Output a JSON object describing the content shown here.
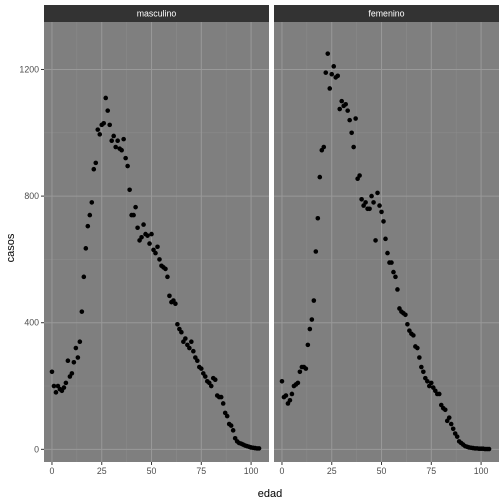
{
  "chart_data": {
    "type": "scatter",
    "xlabel": "edad",
    "ylabel": "casos",
    "xlim": [
      -4,
      109
    ],
    "ylim": [
      -40,
      1350
    ],
    "x_ticks": [
      0,
      25,
      50,
      75,
      100
    ],
    "y_ticks": [
      0,
      400,
      800,
      1200
    ],
    "grid": true,
    "facets": [
      {
        "label": "masculino",
        "x": [
          0,
          1,
          2,
          3,
          4,
          5,
          6,
          7,
          8,
          9,
          10,
          11,
          12,
          13,
          14,
          15,
          16,
          17,
          18,
          19,
          20,
          21,
          22,
          23,
          24,
          25,
          26,
          27,
          28,
          29,
          30,
          31,
          32,
          33,
          34,
          35,
          36,
          37,
          38,
          39,
          40,
          41,
          42,
          43,
          44,
          45,
          46,
          47,
          48,
          49,
          50,
          51,
          52,
          53,
          54,
          55,
          56,
          57,
          58,
          59,
          60,
          61,
          62,
          63,
          64,
          65,
          66,
          67,
          68,
          69,
          70,
          71,
          72,
          73,
          74,
          75,
          76,
          77,
          78,
          79,
          80,
          81,
          82,
          83,
          84,
          85,
          86,
          87,
          88,
          89,
          90,
          91,
          92,
          93,
          94,
          95,
          96,
          97,
          98,
          99,
          100,
          101,
          102,
          103,
          104
        ],
        "y": [
          245,
          200,
          180,
          200,
          190,
          185,
          195,
          210,
          280,
          230,
          240,
          275,
          320,
          290,
          340,
          435,
          545,
          635,
          705,
          740,
          780,
          885,
          905,
          1010,
          995,
          1025,
          1030,
          1110,
          1070,
          1025,
          975,
          990,
          955,
          975,
          950,
          945,
          980,
          920,
          895,
          820,
          740,
          740,
          765,
          700,
          660,
          670,
          710,
          680,
          675,
          650,
          680,
          630,
          620,
          640,
          600,
          580,
          575,
          570,
          545,
          485,
          465,
          470,
          460,
          395,
          380,
          370,
          340,
          350,
          330,
          320,
          340,
          310,
          290,
          280,
          260,
          255,
          240,
          230,
          215,
          210,
          200,
          225,
          220,
          170,
          165,
          165,
          145,
          115,
          105,
          80,
          75,
          60,
          35,
          25,
          20,
          18,
          15,
          12,
          10,
          8,
          6,
          5,
          4,
          3,
          3
        ]
      },
      {
        "label": "femenino",
        "x": [
          0,
          1,
          2,
          3,
          4,
          5,
          6,
          7,
          8,
          9,
          10,
          11,
          12,
          13,
          14,
          15,
          16,
          17,
          18,
          19,
          20,
          21,
          22,
          23,
          24,
          25,
          26,
          27,
          28,
          29,
          30,
          31,
          32,
          33,
          34,
          35,
          36,
          37,
          38,
          39,
          40,
          41,
          42,
          43,
          44,
          45,
          46,
          47,
          48,
          49,
          50,
          51,
          52,
          53,
          54,
          55,
          56,
          57,
          58,
          59,
          60,
          61,
          62,
          63,
          64,
          65,
          66,
          67,
          68,
          69,
          70,
          71,
          72,
          73,
          74,
          75,
          76,
          77,
          78,
          79,
          80,
          81,
          82,
          83,
          84,
          85,
          86,
          87,
          88,
          89,
          90,
          91,
          92,
          93,
          94,
          95,
          96,
          97,
          98,
          99,
          100,
          101,
          102,
          103,
          104
        ],
        "y": [
          215,
          165,
          170,
          145,
          155,
          175,
          200,
          205,
          210,
          245,
          260,
          260,
          255,
          330,
          380,
          410,
          470,
          625,
          730,
          860,
          945,
          955,
          1190,
          1250,
          1140,
          1185,
          1210,
          1175,
          1180,
          1075,
          1100,
          1085,
          1090,
          1070,
          1040,
          1000,
          955,
          1045,
          855,
          865,
          790,
          770,
          780,
          760,
          760,
          800,
          780,
          660,
          810,
          770,
          750,
          720,
          665,
          620,
          590,
          590,
          560,
          545,
          505,
          445,
          435,
          430,
          425,
          395,
          375,
          365,
          360,
          325,
          320,
          290,
          260,
          245,
          225,
          215,
          200,
          210,
          195,
          185,
          175,
          175,
          140,
          130,
          125,
          90,
          100,
          80,
          65,
          50,
          40,
          25,
          20,
          15,
          10,
          8,
          6,
          5,
          4,
          3,
          3,
          2,
          2,
          2,
          1,
          1,
          1
        ]
      }
    ]
  }
}
